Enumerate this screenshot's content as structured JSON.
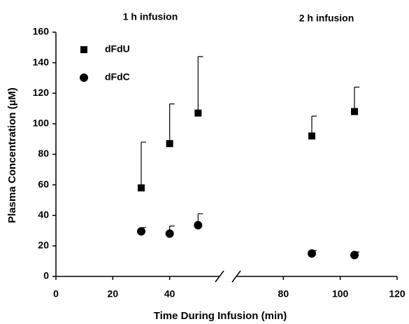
{
  "chart_data": {
    "type": "scatter",
    "annotations": [
      "1 h infusion",
      "2 h infusion"
    ],
    "x_label": "Time During Infusion (min)",
    "y_label": "Plasma Concentration (µM)",
    "xlim": [
      0,
      120
    ],
    "xticks": [
      0,
      20,
      40,
      80,
      100,
      120
    ],
    "ylim": [
      0,
      160
    ],
    "yticks": [
      0,
      20,
      40,
      60,
      80,
      100,
      120,
      140,
      160
    ],
    "grid": false,
    "legend": "upper left",
    "series": [
      {
        "name": "dFdU",
        "color": "#000000",
        "marker": "square",
        "x": [
          30,
          40,
          50,
          90,
          105
        ],
        "values": [
          58,
          87,
          107,
          92,
          108
        ],
        "errors": [
          30,
          26,
          37,
          13,
          16
        ]
      },
      {
        "name": "dFdC",
        "color": "#000000",
        "marker": "circle",
        "x": [
          30,
          40,
          50,
          90,
          105
        ],
        "values": [
          29.5,
          28,
          33.5,
          15,
          14
        ],
        "errors": [
          2.5,
          5,
          7.5,
          2,
          2
        ]
      }
    ]
  }
}
